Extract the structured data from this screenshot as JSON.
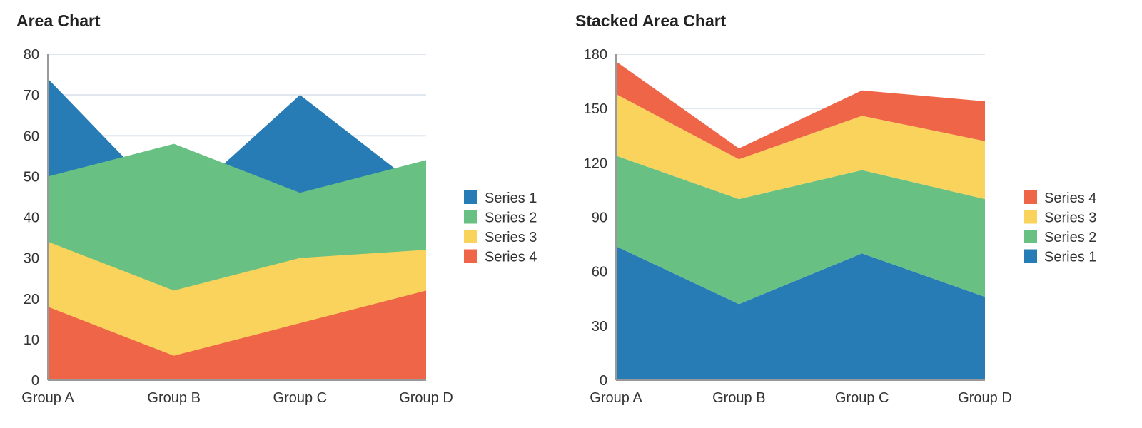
{
  "colors": {
    "s1": "#277cb6",
    "s2": "#68c182",
    "s3": "#f9d35c",
    "s4": "#ef6548",
    "grid": "#dfe6ee",
    "axis": "#999999"
  },
  "chart_data": [
    {
      "type": "area",
      "title": "Area Chart",
      "categories": [
        "Group A",
        "Group B",
        "Group C",
        "Group D"
      ],
      "ylim": [
        0,
        80
      ],
      "yticks": [
        0,
        10,
        20,
        30,
        40,
        50,
        60,
        70,
        80
      ],
      "legend": "right",
      "legend_order": [
        "Series 1",
        "Series 2",
        "Series 3",
        "Series 4"
      ],
      "series": [
        {
          "name": "Series 1",
          "values": [
            74,
            42,
            70,
            46
          ]
        },
        {
          "name": "Series 2",
          "values": [
            50,
            58,
            46,
            54
          ]
        },
        {
          "name": "Series 3",
          "values": [
            34,
            22,
            30,
            32
          ]
        },
        {
          "name": "Series 4",
          "values": [
            18,
            6,
            14,
            22
          ]
        }
      ]
    },
    {
      "type": "area",
      "stacked": true,
      "title": "Stacked Area Chart",
      "categories": [
        "Group A",
        "Group B",
        "Group C",
        "Group D"
      ],
      "ylim": [
        0,
        180
      ],
      "yticks": [
        0,
        30,
        60,
        90,
        120,
        150,
        180
      ],
      "legend": "right",
      "legend_order": [
        "Series 4",
        "Series 3",
        "Series 2",
        "Series 1"
      ],
      "series": [
        {
          "name": "Series 1",
          "values": [
            74,
            42,
            70,
            46
          ]
        },
        {
          "name": "Series 2",
          "values": [
            50,
            58,
            46,
            54
          ]
        },
        {
          "name": "Series 3",
          "values": [
            34,
            22,
            30,
            32
          ]
        },
        {
          "name": "Series 4",
          "values": [
            18,
            6,
            14,
            22
          ]
        }
      ]
    }
  ]
}
